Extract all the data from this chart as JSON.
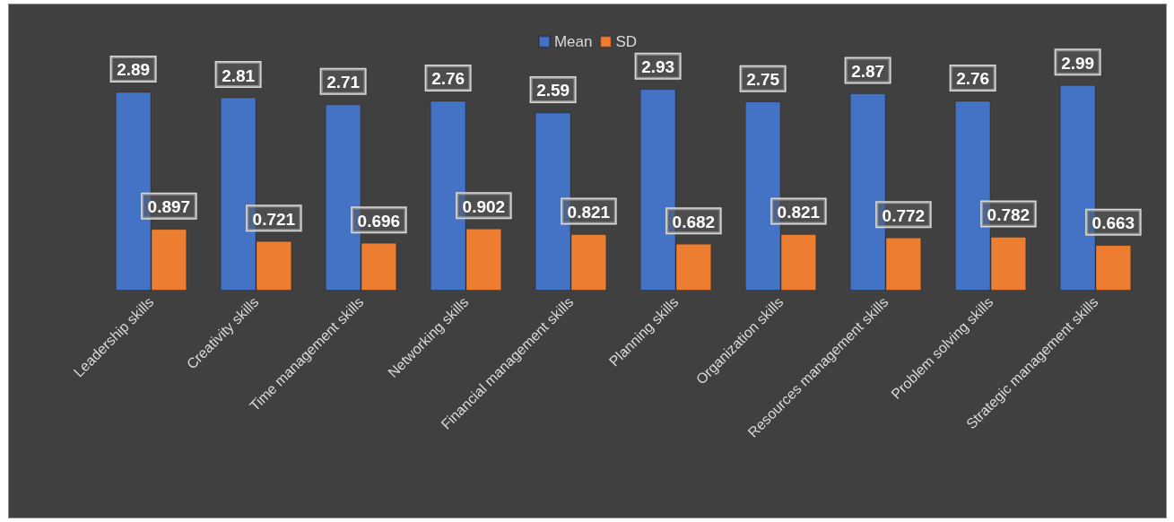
{
  "chart_data": {
    "type": "bar",
    "categories": [
      "Leadership skills",
      "Creativity skills",
      "Time management skills",
      "Networking skills",
      "Financial management skills",
      "Planning skills",
      "Organization skills",
      "Resources management skills",
      "Problem solving skills",
      "Strategic management skills"
    ],
    "series": [
      {
        "name": "Mean",
        "color": "#4472c4",
        "values": [
          2.89,
          2.81,
          2.71,
          2.76,
          2.59,
          2.93,
          2.75,
          2.87,
          2.76,
          2.99
        ]
      },
      {
        "name": "SD",
        "color": "#ed7d31",
        "values": [
          0.897,
          0.721,
          0.696,
          0.902,
          0.821,
          0.682,
          0.821,
          0.772,
          0.782,
          0.663
        ]
      }
    ],
    "data_labels": true,
    "legend": "top"
  }
}
